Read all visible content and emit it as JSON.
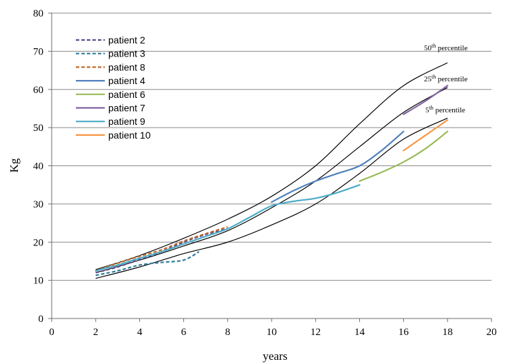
{
  "chart_data": {
    "type": "line",
    "title": "",
    "xlabel": "years",
    "ylabel": "Kg",
    "xlim": [
      0,
      20
    ],
    "ylim": [
      0,
      80
    ],
    "xticks": [
      0,
      2,
      4,
      6,
      8,
      10,
      12,
      14,
      16,
      18,
      20
    ],
    "yticks": [
      0,
      10,
      20,
      30,
      40,
      50,
      60,
      70,
      80
    ],
    "grid": "horizontal",
    "legend_position": "top-left",
    "reference_curves": [
      {
        "label_base": "50",
        "label_sup": "th",
        "label_rest": " percentile",
        "color": "#000000",
        "points": [
          [
            2,
            12.8
          ],
          [
            4,
            16.5
          ],
          [
            6,
            21
          ],
          [
            8,
            26
          ],
          [
            10,
            32
          ],
          [
            12,
            40
          ],
          [
            14,
            51
          ],
          [
            16,
            61
          ],
          [
            18,
            67
          ]
        ]
      },
      {
        "label_base": "25",
        "label_sup": "th",
        "label_rest": " percentile",
        "color": "#000000",
        "points": [
          [
            2,
            12
          ],
          [
            4,
            15.3
          ],
          [
            6,
            19
          ],
          [
            8,
            23
          ],
          [
            10,
            29
          ],
          [
            12,
            36
          ],
          [
            14,
            45
          ],
          [
            16,
            54
          ],
          [
            18,
            60.5
          ]
        ]
      },
      {
        "label_base": "5",
        "label_sup": "th",
        "label_rest": " percentile",
        "color": "#000000",
        "points": [
          [
            2,
            10.5
          ],
          [
            4,
            13.5
          ],
          [
            6,
            17
          ],
          [
            8,
            20
          ],
          [
            10,
            24.5
          ],
          [
            12,
            30
          ],
          [
            14,
            38
          ],
          [
            16,
            47
          ],
          [
            18,
            52.5
          ]
        ]
      }
    ],
    "series": [
      {
        "name": "patient 2",
        "color": "#5b4a8b",
        "dashed": true,
        "points": [
          [
            2,
            12
          ],
          [
            3,
            13.5
          ],
          [
            4,
            15.5
          ],
          [
            5,
            17.5
          ],
          [
            6,
            20
          ],
          [
            7,
            22
          ],
          [
            8,
            23.5
          ]
        ]
      },
      {
        "name": "patient 3",
        "color": "#2e7d9a",
        "dashed": true,
        "points": [
          [
            2,
            11.3
          ],
          [
            3,
            12.5
          ],
          [
            4,
            14
          ],
          [
            5,
            14.7
          ],
          [
            6,
            15.3
          ],
          [
            6.7,
            17.5
          ]
        ]
      },
      {
        "name": "patient 8",
        "color": "#c0682a",
        "dashed": true,
        "points": [
          [
            2,
            12.5
          ],
          [
            3,
            14.5
          ],
          [
            4,
            16.3
          ],
          [
            5,
            18
          ],
          [
            6,
            20.3
          ],
          [
            7,
            22.2
          ],
          [
            8,
            24
          ]
        ]
      },
      {
        "name": "patient 4",
        "color": "#4f81bd",
        "dashed": false,
        "points": [
          [
            10,
            30.5
          ],
          [
            11,
            33.5
          ],
          [
            12,
            36
          ],
          [
            13,
            38
          ],
          [
            14,
            40
          ],
          [
            15,
            44
          ],
          [
            16,
            49
          ]
        ]
      },
      {
        "name": "patient 6",
        "color": "#9bbb59",
        "dashed": false,
        "points": [
          [
            14,
            36
          ],
          [
            15,
            38.3
          ],
          [
            16,
            41
          ],
          [
            17,
            44.5
          ],
          [
            18,
            49
          ]
        ]
      },
      {
        "name": "patient 7",
        "color": "#8064a2",
        "dashed": false,
        "points": [
          [
            16,
            53.5
          ],
          [
            17,
            57
          ],
          [
            18,
            61
          ]
        ]
      },
      {
        "name": "patient 9",
        "color": "#4bacc6",
        "dashed": false,
        "points": [
          [
            2,
            12.5
          ],
          [
            3,
            14
          ],
          [
            4,
            15.8
          ],
          [
            5,
            17.5
          ],
          [
            6,
            19.5
          ],
          [
            7,
            21.5
          ],
          [
            8,
            23.5
          ],
          [
            9,
            26.5
          ],
          [
            10,
            29.5
          ],
          [
            11,
            30.7
          ],
          [
            12,
            31.5
          ],
          [
            13,
            33
          ],
          [
            14,
            35
          ]
        ]
      },
      {
        "name": "patient 10",
        "color": "#f79646",
        "dashed": false,
        "points": [
          [
            16,
            44
          ],
          [
            17,
            48
          ],
          [
            18,
            52
          ]
        ]
      }
    ]
  }
}
